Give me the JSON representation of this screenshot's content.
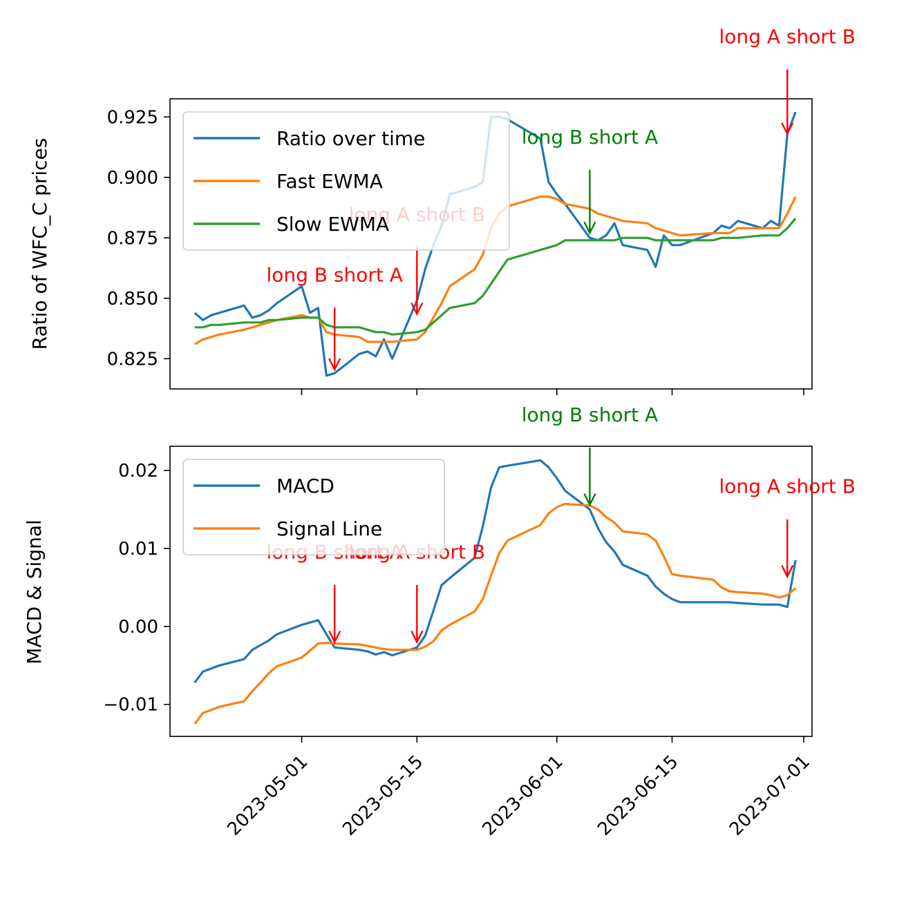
{
  "chart_data": [
    {
      "type": "line",
      "ylabel": "Ratio of WFC_C prices",
      "xlim": [
        "2023-04-15",
        "2023-07-02"
      ],
      "ylim": [
        0.8125,
        0.9325
      ],
      "yticks": [
        0.825,
        0.85,
        0.875,
        0.9,
        0.925
      ],
      "ytick_labels": [
        "0.825",
        "0.850",
        "0.875",
        "0.900",
        "0.925"
      ],
      "xticks": [
        "2023-05-01",
        "2023-05-15",
        "2023-06-01",
        "2023-06-15",
        "2023-07-01"
      ],
      "grid": false,
      "legend": {
        "position": "upper-left",
        "entries": [
          "Ratio over time",
          "Fast EWMA",
          "Slow EWMA"
        ]
      },
      "series": [
        {
          "name": "Ratio over time",
          "color": "#1f77b4",
          "x": [
            "2023-04-18",
            "2023-04-19",
            "2023-04-20",
            "2023-04-21",
            "2023-04-24",
            "2023-04-25",
            "2023-04-26",
            "2023-04-27",
            "2023-04-28",
            "2023-05-01",
            "2023-05-02",
            "2023-05-03",
            "2023-05-04",
            "2023-05-05",
            "2023-05-08",
            "2023-05-09",
            "2023-05-10",
            "2023-05-11",
            "2023-05-12",
            "2023-05-15",
            "2023-05-16",
            "2023-05-17",
            "2023-05-18",
            "2023-05-19",
            "2023-05-22",
            "2023-05-23",
            "2023-05-24",
            "2023-05-25",
            "2023-05-26",
            "2023-05-30",
            "2023-05-31",
            "2023-06-01",
            "2023-06-02",
            "2023-06-05",
            "2023-06-06",
            "2023-06-07",
            "2023-06-08",
            "2023-06-09",
            "2023-06-12",
            "2023-06-13",
            "2023-06-14",
            "2023-06-15",
            "2023-06-16",
            "2023-06-20",
            "2023-06-21",
            "2023-06-22",
            "2023-06-23",
            "2023-06-26",
            "2023-06-27",
            "2023-06-28",
            "2023-06-29",
            "2023-06-30"
          ],
          "y": [
            0.844,
            0.841,
            0.843,
            0.844,
            0.847,
            0.842,
            0.843,
            0.845,
            0.848,
            0.855,
            0.844,
            0.846,
            0.818,
            0.819,
            0.827,
            0.828,
            0.826,
            0.833,
            0.825,
            0.849,
            0.862,
            0.872,
            0.88,
            0.893,
            0.896,
            0.898,
            0.925,
            0.925,
            0.924,
            0.916,
            0.898,
            0.893,
            0.889,
            0.875,
            0.874,
            0.876,
            0.881,
            0.872,
            0.87,
            0.863,
            0.876,
            0.872,
            0.872,
            0.877,
            0.88,
            0.879,
            0.882,
            0.879,
            0.882,
            0.88,
            0.918,
            0.927
          ]
        },
        {
          "name": "Fast EWMA",
          "color": "#ff7f0e",
          "x": [
            "2023-04-18",
            "2023-04-19",
            "2023-04-20",
            "2023-04-21",
            "2023-04-24",
            "2023-04-25",
            "2023-04-26",
            "2023-04-27",
            "2023-04-28",
            "2023-05-01",
            "2023-05-02",
            "2023-05-03",
            "2023-05-04",
            "2023-05-05",
            "2023-05-08",
            "2023-05-09",
            "2023-05-10",
            "2023-05-11",
            "2023-05-12",
            "2023-05-15",
            "2023-05-16",
            "2023-05-17",
            "2023-05-18",
            "2023-05-19",
            "2023-05-22",
            "2023-05-23",
            "2023-05-24",
            "2023-05-25",
            "2023-05-26",
            "2023-05-30",
            "2023-05-31",
            "2023-06-01",
            "2023-06-02",
            "2023-06-05",
            "2023-06-06",
            "2023-06-07",
            "2023-06-08",
            "2023-06-09",
            "2023-06-12",
            "2023-06-13",
            "2023-06-14",
            "2023-06-15",
            "2023-06-16",
            "2023-06-20",
            "2023-06-21",
            "2023-06-22",
            "2023-06-23",
            "2023-06-26",
            "2023-06-27",
            "2023-06-28",
            "2023-06-29",
            "2023-06-30"
          ],
          "y": [
            0.831,
            0.833,
            0.834,
            0.835,
            0.837,
            0.838,
            0.839,
            0.84,
            0.841,
            0.843,
            0.842,
            0.842,
            0.836,
            0.835,
            0.834,
            0.832,
            0.832,
            0.832,
            0.832,
            0.833,
            0.836,
            0.842,
            0.848,
            0.855,
            0.862,
            0.868,
            0.879,
            0.885,
            0.888,
            0.892,
            0.892,
            0.891,
            0.889,
            0.887,
            0.885,
            0.884,
            0.883,
            0.882,
            0.881,
            0.879,
            0.878,
            0.877,
            0.876,
            0.877,
            0.877,
            0.877,
            0.879,
            0.879,
            0.879,
            0.879,
            0.885,
            0.892
          ]
        },
        {
          "name": "Slow EWMA",
          "color": "#2ca02c",
          "x": [
            "2023-04-18",
            "2023-04-19",
            "2023-04-20",
            "2023-04-21",
            "2023-04-24",
            "2023-04-25",
            "2023-04-26",
            "2023-04-27",
            "2023-04-28",
            "2023-05-01",
            "2023-05-02",
            "2023-05-03",
            "2023-05-04",
            "2023-05-05",
            "2023-05-08",
            "2023-05-09",
            "2023-05-10",
            "2023-05-11",
            "2023-05-12",
            "2023-05-15",
            "2023-05-16",
            "2023-05-17",
            "2023-05-18",
            "2023-05-19",
            "2023-05-22",
            "2023-05-23",
            "2023-05-24",
            "2023-05-25",
            "2023-05-26",
            "2023-05-30",
            "2023-05-31",
            "2023-06-01",
            "2023-06-02",
            "2023-06-05",
            "2023-06-06",
            "2023-06-07",
            "2023-06-08",
            "2023-06-09",
            "2023-06-12",
            "2023-06-13",
            "2023-06-14",
            "2023-06-15",
            "2023-06-16",
            "2023-06-20",
            "2023-06-21",
            "2023-06-22",
            "2023-06-23",
            "2023-06-26",
            "2023-06-27",
            "2023-06-28",
            "2023-06-29",
            "2023-06-30"
          ],
          "y": [
            0.838,
            0.838,
            0.839,
            0.839,
            0.84,
            0.84,
            0.84,
            0.841,
            0.841,
            0.842,
            0.842,
            0.842,
            0.839,
            0.838,
            0.838,
            0.837,
            0.836,
            0.836,
            0.835,
            0.836,
            0.837,
            0.84,
            0.843,
            0.846,
            0.848,
            0.851,
            0.856,
            0.861,
            0.866,
            0.87,
            0.871,
            0.872,
            0.874,
            0.874,
            0.874,
            0.874,
            0.874,
            0.875,
            0.875,
            0.874,
            0.874,
            0.874,
            0.874,
            0.874,
            0.875,
            0.875,
            0.875,
            0.876,
            0.876,
            0.876,
            0.879,
            0.883
          ]
        }
      ],
      "annotations": [
        {
          "text": "long B short A",
          "color": "red",
          "x": "2023-05-05",
          "y": 0.8205,
          "label_y": 0.857
        },
        {
          "text": "long A short B",
          "color": "red",
          "x": "2023-05-15",
          "y": 0.8435,
          "label_y": 0.882
        },
        {
          "text": "long B short A",
          "color": "green",
          "x": "2023-06-05",
          "y": 0.877,
          "label_y": 0.914
        },
        {
          "text": "long A short B",
          "color": "red",
          "x": "2023-06-29",
          "y": 0.918,
          "label_y": 0.9555
        }
      ]
    },
    {
      "type": "line",
      "ylabel": "MACD & Signal",
      "xlim": [
        "2023-04-15",
        "2023-07-02"
      ],
      "ylim": [
        -0.0141,
        0.0231
      ],
      "yticks": [
        -0.01,
        0.0,
        0.01,
        0.02
      ],
      "ytick_labels": [
        "−0.01",
        "0.00",
        "0.01",
        "0.02"
      ],
      "xticks": [
        "2023-05-01",
        "2023-05-15",
        "2023-06-01",
        "2023-06-15",
        "2023-07-01"
      ],
      "grid": false,
      "legend": {
        "position": "upper-left",
        "entries": [
          "MACD",
          "Signal Line"
        ]
      },
      "series": [
        {
          "name": "MACD",
          "color": "#1f77b4",
          "x": [
            "2023-04-18",
            "2023-04-19",
            "2023-04-20",
            "2023-04-21",
            "2023-04-24",
            "2023-04-25",
            "2023-04-26",
            "2023-04-27",
            "2023-04-28",
            "2023-05-01",
            "2023-05-02",
            "2023-05-03",
            "2023-05-04",
            "2023-05-05",
            "2023-05-08",
            "2023-05-09",
            "2023-05-10",
            "2023-05-11",
            "2023-05-12",
            "2023-05-15",
            "2023-05-16",
            "2023-05-17",
            "2023-05-18",
            "2023-05-19",
            "2023-05-22",
            "2023-05-23",
            "2023-05-24",
            "2023-05-25",
            "2023-05-26",
            "2023-05-30",
            "2023-05-31",
            "2023-06-01",
            "2023-06-02",
            "2023-06-05",
            "2023-06-06",
            "2023-06-07",
            "2023-06-08",
            "2023-06-09",
            "2023-06-12",
            "2023-06-13",
            "2023-06-14",
            "2023-06-15",
            "2023-06-16",
            "2023-06-20",
            "2023-06-21",
            "2023-06-22",
            "2023-06-23",
            "2023-06-26",
            "2023-06-27",
            "2023-06-28",
            "2023-06-29",
            "2023-06-30"
          ],
          "y": [
            -0.0072,
            -0.0058,
            -0.0054,
            -0.005,
            -0.0042,
            -0.003,
            -0.0024,
            -0.0018,
            -0.001,
            0.0002,
            0.0005,
            0.0008,
            -0.001,
            -0.0027,
            -0.003,
            -0.0032,
            -0.0036,
            -0.0033,
            -0.0037,
            -0.0027,
            -0.0012,
            0.002,
            0.0053,
            0.0062,
            0.0088,
            0.0128,
            0.0178,
            0.0204,
            0.0206,
            0.0213,
            0.0204,
            0.019,
            0.0174,
            0.015,
            0.0126,
            0.0108,
            0.0096,
            0.0079,
            0.0065,
            0.0051,
            0.0042,
            0.0035,
            0.0031,
            0.0031,
            0.0031,
            0.0031,
            0.003,
            0.0028,
            0.0028,
            0.0028,
            0.0025,
            0.0085
          ]
        },
        {
          "name": "Signal Line",
          "color": "#ff7f0e",
          "x": [
            "2023-04-18",
            "2023-04-19",
            "2023-04-20",
            "2023-04-21",
            "2023-04-24",
            "2023-04-25",
            "2023-04-26",
            "2023-04-27",
            "2023-04-28",
            "2023-05-01",
            "2023-05-02",
            "2023-05-03",
            "2023-05-04",
            "2023-05-05",
            "2023-05-08",
            "2023-05-09",
            "2023-05-10",
            "2023-05-11",
            "2023-05-12",
            "2023-05-15",
            "2023-05-16",
            "2023-05-17",
            "2023-05-18",
            "2023-05-19",
            "2023-05-22",
            "2023-05-23",
            "2023-05-24",
            "2023-05-25",
            "2023-05-26",
            "2023-05-30",
            "2023-05-31",
            "2023-06-01",
            "2023-06-02",
            "2023-06-05",
            "2023-06-06",
            "2023-06-07",
            "2023-06-08",
            "2023-06-09",
            "2023-06-12",
            "2023-06-13",
            "2023-06-14",
            "2023-06-15",
            "2023-06-16",
            "2023-06-20",
            "2023-06-21",
            "2023-06-22",
            "2023-06-23",
            "2023-06-26",
            "2023-06-27",
            "2023-06-28",
            "2023-06-29",
            "2023-06-30"
          ],
          "y": [
            -0.0125,
            -0.0111,
            -0.0107,
            -0.0103,
            -0.0096,
            -0.0083,
            -0.0072,
            -0.006,
            -0.0051,
            -0.004,
            -0.0031,
            -0.0022,
            -0.0021,
            -0.0022,
            -0.0023,
            -0.0025,
            -0.0027,
            -0.0029,
            -0.003,
            -0.003,
            -0.0026,
            -0.0019,
            -0.0005,
            0.0002,
            0.0019,
            0.0035,
            0.0065,
            0.0094,
            0.011,
            0.013,
            0.0145,
            0.0153,
            0.0157,
            0.0155,
            0.015,
            0.014,
            0.0133,
            0.0122,
            0.0118,
            0.011,
            0.009,
            0.0067,
            0.0065,
            0.006,
            0.005,
            0.0045,
            0.0044,
            0.0042,
            0.004,
            0.0037,
            0.004,
            0.0049
          ]
        }
      ],
      "annotations": [
        {
          "text": "long B short A",
          "color": "red",
          "x": "2023-05-05",
          "y": -0.002,
          "label_y": 0.0087
        },
        {
          "text": "long A short B",
          "color": "red",
          "x": "2023-05-15",
          "y": -0.002,
          "label_y": 0.0087
        },
        {
          "text": "long B short A",
          "color": "green",
          "x": "2023-06-05",
          "y": 0.0156,
          "label_y": 0.0263
        },
        {
          "text": "long A short B",
          "color": "red",
          "x": "2023-06-29",
          "y": 0.0064,
          "label_y": 0.0171
        }
      ]
    }
  ]
}
